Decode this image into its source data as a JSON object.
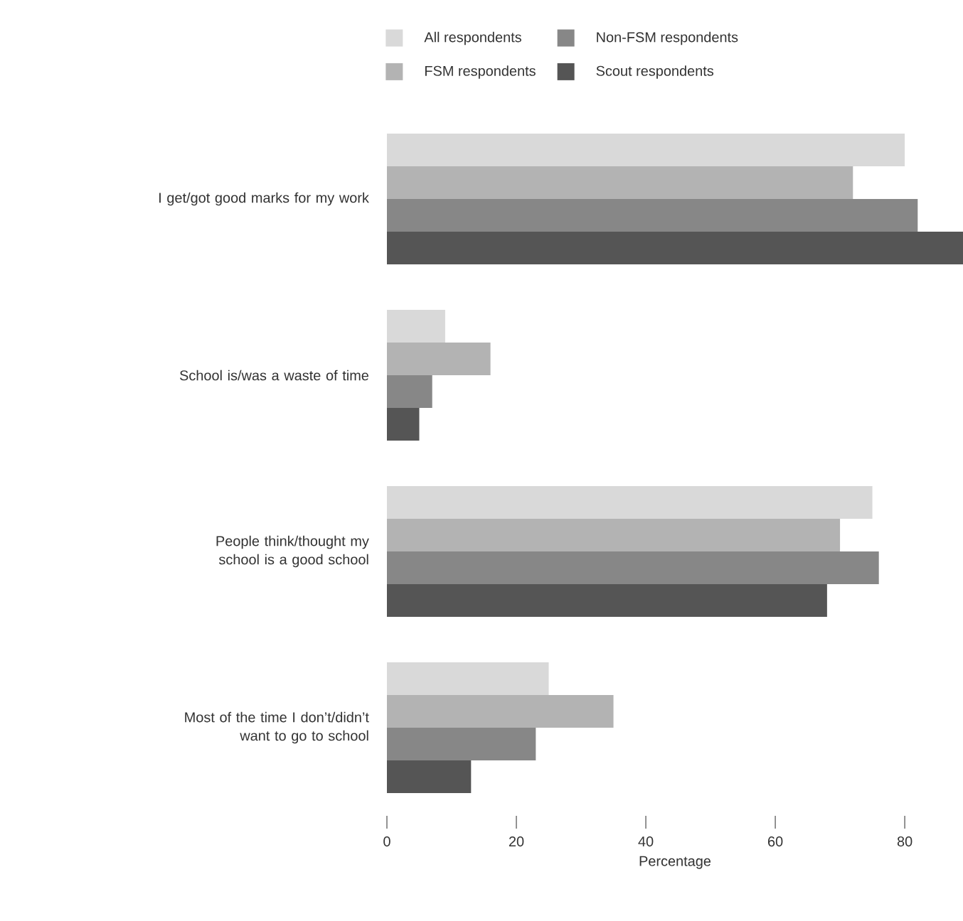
{
  "chart_data": {
    "type": "bar",
    "orientation": "horizontal",
    "xlabel": "Percentage",
    "categories": [
      "I get/got good marks for my work",
      "School is/was a waste of time",
      "People think/thought my school is a good school",
      "Most of the time I don’t/didn’t want to go to school"
    ],
    "series": [
      {
        "name": "All respondents",
        "color": "#d9d9d9",
        "values": [
          80,
          9,
          75,
          25
        ]
      },
      {
        "name": "FSM respondents",
        "color": "#b3b3b3",
        "values": [
          72,
          16,
          70,
          35
        ]
      },
      {
        "name": "Non-FSM respondents",
        "color": "#878787",
        "values": [
          82,
          7,
          76,
          23
        ]
      },
      {
        "name": "Scout respondents",
        "color": "#555555",
        "values": [
          89,
          5,
          68,
          13
        ]
      }
    ],
    "xlim": [
      0,
      89
    ],
    "xticks": [
      0,
      20,
      40,
      60,
      80
    ],
    "legend": "top",
    "grid": false
  }
}
